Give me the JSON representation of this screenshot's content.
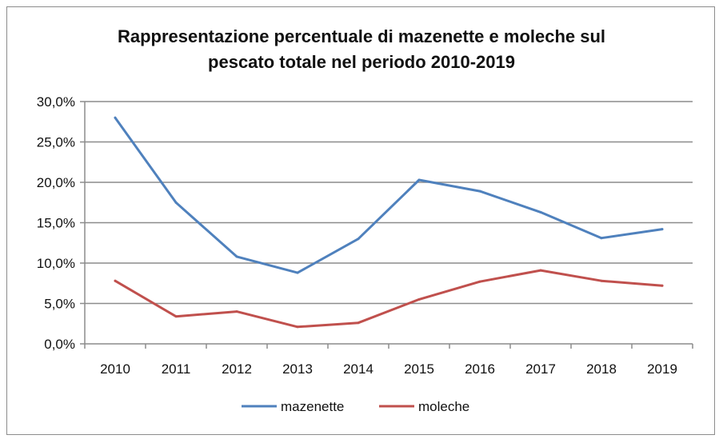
{
  "chart_data": {
    "type": "line",
    "title_line1": "Rappresentazione percentuale di mazenette e moleche sul",
    "title_line2": "pescato totale nel periodo 2010-2019",
    "categories": [
      "2010",
      "2011",
      "2012",
      "2013",
      "2014",
      "2015",
      "2016",
      "2017",
      "2018",
      "2019"
    ],
    "yticks": [
      "0,0%",
      "5,0%",
      "10,0%",
      "15,0%",
      "20,0%",
      "25,0%",
      "30,0%"
    ],
    "ylim": [
      0,
      30
    ],
    "grid": true,
    "legend_position": "bottom",
    "series": [
      {
        "name": "mazenette",
        "color": "#4f81bd",
        "values": [
          28.0,
          17.5,
          10.8,
          8.8,
          13.0,
          20.3,
          18.9,
          16.3,
          13.1,
          14.2
        ]
      },
      {
        "name": "moleche",
        "color": "#c0504d",
        "values": [
          7.8,
          3.4,
          4.0,
          2.1,
          2.6,
          5.5,
          7.7,
          9.1,
          7.8,
          7.2
        ]
      }
    ]
  }
}
